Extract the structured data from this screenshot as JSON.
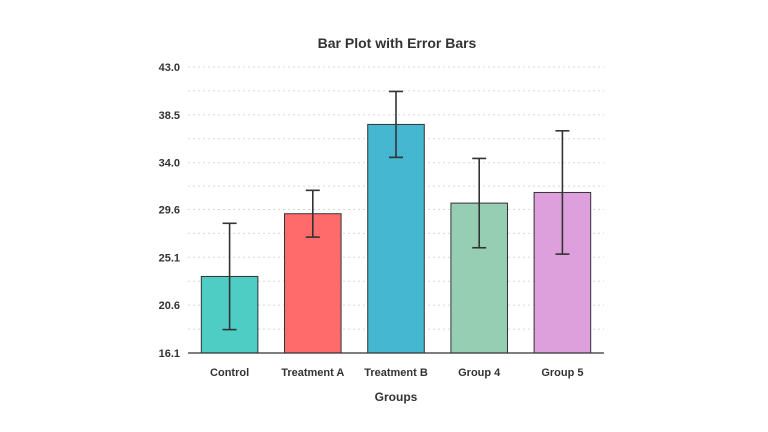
{
  "chart_data": {
    "type": "bar",
    "title": "Bar Plot with Error Bars",
    "xlabel": "Groups",
    "ylabel": "",
    "categories": [
      "Control",
      "Treatment A",
      "Treatment B",
      "Group 4",
      "Group 5"
    ],
    "values": [
      23.3,
      29.2,
      37.6,
      30.2,
      31.2
    ],
    "errors": [
      5.0,
      2.2,
      3.1,
      4.2,
      5.8
    ],
    "colors": [
      "#4ecdc4",
      "#ff6b6b",
      "#45b7d1",
      "#96ceb4",
      "#dda0dd"
    ],
    "ylim": [
      16.1,
      43.0
    ],
    "yticks": [
      "16.1",
      "20.6",
      "25.1",
      "29.6",
      "34.0",
      "38.5",
      "43.0"
    ],
    "ytick_values": [
      16.1,
      20.6,
      25.1,
      29.6,
      34.0,
      38.5,
      43.0
    ],
    "grid": true,
    "grid_style": "dotted",
    "error_color": "#333333",
    "bar_edge_color": "#333333"
  }
}
